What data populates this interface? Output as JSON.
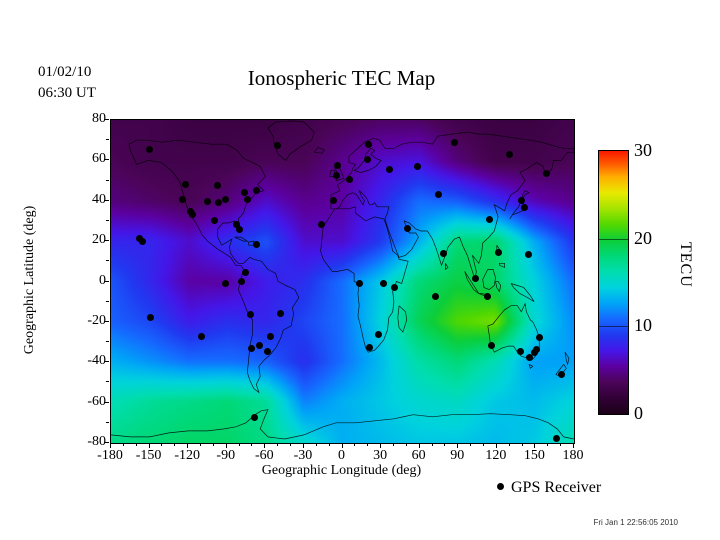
{
  "header": {
    "date": "01/02/10",
    "time": "06:30 UT",
    "title": "Ionospheric TEC Map"
  },
  "map": {
    "xlabel": "Geographic Longitude (deg)",
    "ylabel": "Geographic Latitude (deg)",
    "x_ticks": [
      -180,
      -150,
      -120,
      -90,
      -60,
      -30,
      0,
      30,
      60,
      90,
      120,
      150,
      180
    ],
    "y_ticks": [
      80,
      60,
      40,
      20,
      0,
      -20,
      -40,
      -60,
      -80
    ],
    "x_minor_step": 10,
    "y_minor_step": 10
  },
  "colorbar": {
    "unit_label": "TECU",
    "ticks": [
      0,
      10,
      20,
      30
    ],
    "inner_lines": [
      10,
      20
    ]
  },
  "legend": {
    "marker": "gps-receiver-dot",
    "label": "GPS Receiver"
  },
  "footer": {
    "timestamp": "Fri Jan  1 22:56:05 2010"
  },
  "chart_data": {
    "type": "heatmap",
    "title": "Ionospheric TEC Map",
    "date": "01/02/10",
    "time_ut": "06:30 UT",
    "xlabel": "Geographic Longitude (deg)",
    "ylabel": "Geographic Latitude (deg)",
    "xlim": [
      -180,
      180
    ],
    "ylim": [
      -80,
      80
    ],
    "units": "TECU",
    "colorbar_range": [
      0,
      30
    ],
    "grid_lons": [
      -180,
      -150,
      -120,
      -90,
      -60,
      -30,
      0,
      30,
      60,
      90,
      120,
      150,
      180
    ],
    "grid_lats": [
      80,
      60,
      40,
      20,
      0,
      -20,
      -40,
      -60,
      -80
    ],
    "tec_values": [
      [
        3.0,
        3.0,
        2.5,
        2.5,
        2.5,
        3.0,
        3.5,
        4.0,
        4.0,
        3.0,
        2.5,
        2.5,
        3.0
      ],
      [
        3.5,
        3.0,
        3.0,
        3.0,
        3.5,
        3.5,
        5.0,
        6.5,
        7.0,
        4.5,
        3.0,
        3.0,
        3.5
      ],
      [
        4.5,
        4.0,
        3.5,
        4.5,
        6.5,
        5.0,
        5.5,
        8.0,
        11.0,
        10.5,
        8.5,
        6.0,
        5.0
      ],
      [
        8.0,
        8.0,
        6.5,
        8.5,
        10.0,
        6.5,
        6.5,
        9.0,
        13.0,
        18.0,
        18.5,
        13.0,
        9.0
      ],
      [
        10.0,
        8.0,
        5.5,
        5.5,
        7.5,
        8.5,
        11.0,
        14.0,
        18.0,
        19.5,
        18.5,
        14.5,
        11.0
      ],
      [
        10.5,
        9.5,
        7.5,
        8.5,
        8.0,
        9.5,
        11.0,
        14.5,
        19.0,
        21.5,
        22.5,
        15.0,
        12.0
      ],
      [
        13.0,
        12.0,
        11.0,
        11.0,
        10.5,
        8.5,
        11.0,
        13.5,
        16.5,
        18.0,
        16.0,
        12.5,
        12.5
      ],
      [
        16.0,
        17.0,
        17.5,
        18.0,
        17.0,
        11.5,
        13.0,
        14.0,
        15.0,
        15.5,
        14.0,
        13.5,
        14.5
      ],
      [
        17.5,
        18.0,
        18.5,
        18.5,
        17.5,
        15.0,
        13.0,
        13.5,
        14.0,
        14.0,
        13.5,
        14.0,
        16.0
      ]
    ],
    "colormap": [
      [
        0.0,
        "#1c0018"
      ],
      [
        0.05,
        "#2d0030"
      ],
      [
        0.12,
        "#4b0458"
      ],
      [
        0.18,
        "#5c00a0"
      ],
      [
        0.24,
        "#4516e8"
      ],
      [
        0.3,
        "#2138f0"
      ],
      [
        0.36,
        "#1668ff"
      ],
      [
        0.42,
        "#00a4f8"
      ],
      [
        0.48,
        "#00d2de"
      ],
      [
        0.54,
        "#00ddb0"
      ],
      [
        0.6,
        "#00d878"
      ],
      [
        0.66,
        "#0cce3a"
      ],
      [
        0.72,
        "#52d800"
      ],
      [
        0.78,
        "#a4e400"
      ],
      [
        0.84,
        "#e8ea00"
      ],
      [
        0.9,
        "#ffb000"
      ],
      [
        0.95,
        "#ff5c00"
      ],
      [
        1.0,
        "#f81800"
      ]
    ],
    "gps_receivers": [
      [
        -149.7,
        65.3
      ],
      [
        -50.9,
        67.2
      ],
      [
        -122.4,
        48.2
      ],
      [
        -97.4,
        47.4
      ],
      [
        -124.3,
        40.5
      ],
      [
        -105.2,
        39.7
      ],
      [
        -96.5,
        39.0
      ],
      [
        -91.0,
        40.5
      ],
      [
        -76.5,
        44.1
      ],
      [
        -66.7,
        45.3
      ],
      [
        -74.0,
        40.4
      ],
      [
        -118.2,
        34.6
      ],
      [
        -116.5,
        33.3
      ],
      [
        -99.9,
        30.4
      ],
      [
        -82.5,
        28.0
      ],
      [
        -80.3,
        25.8
      ],
      [
        -66.6,
        18.2
      ],
      [
        -157.9,
        21.4
      ],
      [
        -155.3,
        19.7
      ],
      [
        -75.1,
        4.6
      ],
      [
        -78.5,
        -0.2
      ],
      [
        -90.7,
        -0.9
      ],
      [
        -149.6,
        -17.7
      ],
      [
        -109.4,
        -27.1
      ],
      [
        -71.5,
        -16.5
      ],
      [
        -47.9,
        -15.9
      ],
      [
        -55.8,
        -27.4
      ],
      [
        -64.5,
        -31.5
      ],
      [
        -58.4,
        -34.6
      ],
      [
        -70.7,
        -33.4
      ],
      [
        -16.5,
        28.2
      ],
      [
        -3.9,
        57.5
      ],
      [
        -4.3,
        52.4
      ],
      [
        5.1,
        50.6
      ],
      [
        19.8,
        60.2
      ],
      [
        20.6,
        68.0
      ],
      [
        36.2,
        55.3
      ],
      [
        58.6,
        57.1
      ],
      [
        87.4,
        69.1
      ],
      [
        -6.8,
        40.3
      ],
      [
        74.3,
        43.3
      ],
      [
        50.4,
        26.4
      ],
      [
        13.6,
        -1.2
      ],
      [
        31.6,
        -0.8
      ],
      [
        40.2,
        -2.9
      ],
      [
        72.4,
        -7.3
      ],
      [
        28.2,
        -26.1
      ],
      [
        20.9,
        -32.6
      ],
      [
        129.7,
        62.9
      ],
      [
        158.8,
        53.5
      ],
      [
        114.5,
        30.7
      ],
      [
        139.0,
        40.2
      ],
      [
        141.2,
        36.6
      ],
      [
        78.6,
        14.0
      ],
      [
        121.0,
        14.6
      ],
      [
        144.8,
        13.5
      ],
      [
        103.8,
        1.3
      ],
      [
        112.6,
        -7.3
      ],
      [
        115.9,
        -31.9
      ],
      [
        138.6,
        -34.9
      ],
      [
        145.1,
        -37.8
      ],
      [
        149.1,
        -35.3
      ],
      [
        151.2,
        -33.9
      ],
      [
        153.0,
        -27.5
      ],
      [
        170.5,
        -45.9
      ],
      [
        166.7,
        -77.8
      ],
      [
        -68.1,
        -67.6
      ]
    ]
  }
}
